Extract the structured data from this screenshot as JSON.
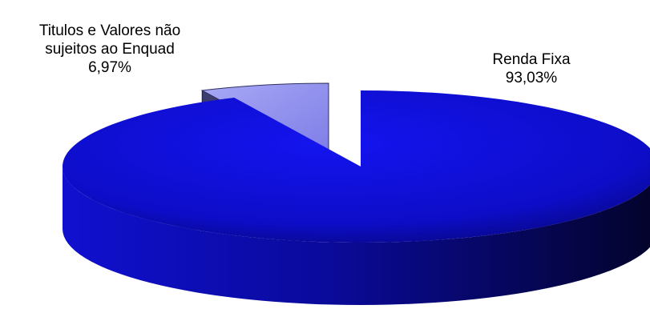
{
  "chart_data": {
    "type": "pie",
    "title": "",
    "three_d": true,
    "legend": "none",
    "series": [
      {
        "label_lines": [
          "Renda Fixa"
        ],
        "value_label": "93,03%",
        "value": 93.03,
        "color": "#1010e0",
        "exploded": false
      },
      {
        "label_lines": [
          "Titulos e Valores não",
          "sujeitos ao Enquad"
        ],
        "value_label": "6,97%",
        "value": 6.97,
        "color": "#9a9af0",
        "exploded": true
      }
    ]
  }
}
